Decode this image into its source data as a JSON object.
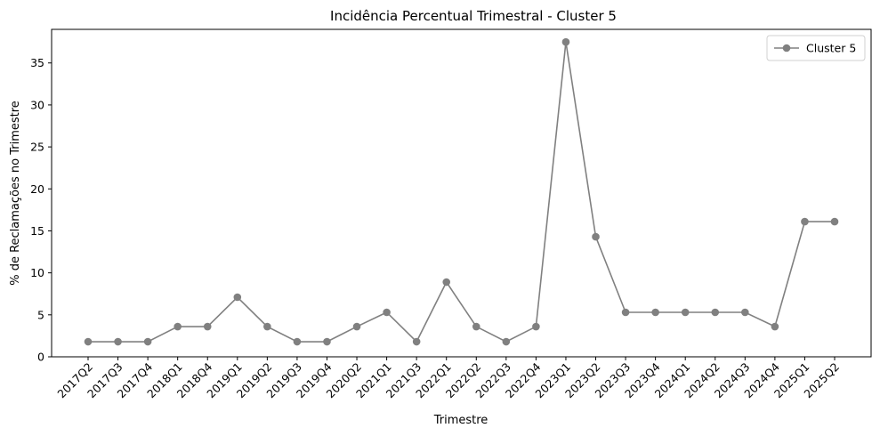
{
  "chart_data": {
    "type": "line",
    "title": "Incidência Percentual Trimestral - Cluster 5",
    "xlabel": "Trimestre",
    "ylabel": "% de Reclamações no Trimestre",
    "ylim": [
      0,
      39
    ],
    "yticks": [
      0,
      5,
      10,
      15,
      20,
      25,
      30,
      35
    ],
    "grid": false,
    "legend_position": "top-right",
    "categories": [
      "2017Q2",
      "2017Q3",
      "2017Q4",
      "2018Q1",
      "2018Q4",
      "2019Q1",
      "2019Q2",
      "2019Q3",
      "2019Q4",
      "2020Q2",
      "2021Q1",
      "2021Q3",
      "2022Q1",
      "2022Q2",
      "2022Q3",
      "2022Q4",
      "2023Q1",
      "2023Q2",
      "2023Q3",
      "2023Q4",
      "2024Q1",
      "2024Q2",
      "2024Q3",
      "2024Q4",
      "2025Q1",
      "2025Q2"
    ],
    "series": [
      {
        "name": "Cluster 5",
        "color": "#808080",
        "values": [
          1.8,
          1.8,
          1.8,
          3.6,
          3.6,
          7.1,
          3.6,
          1.8,
          1.8,
          3.6,
          5.3,
          1.8,
          8.9,
          3.6,
          1.8,
          3.6,
          37.5,
          14.3,
          5.3,
          5.3,
          5.3,
          5.3,
          5.3,
          3.6,
          16.1,
          16.1
        ]
      }
    ]
  }
}
